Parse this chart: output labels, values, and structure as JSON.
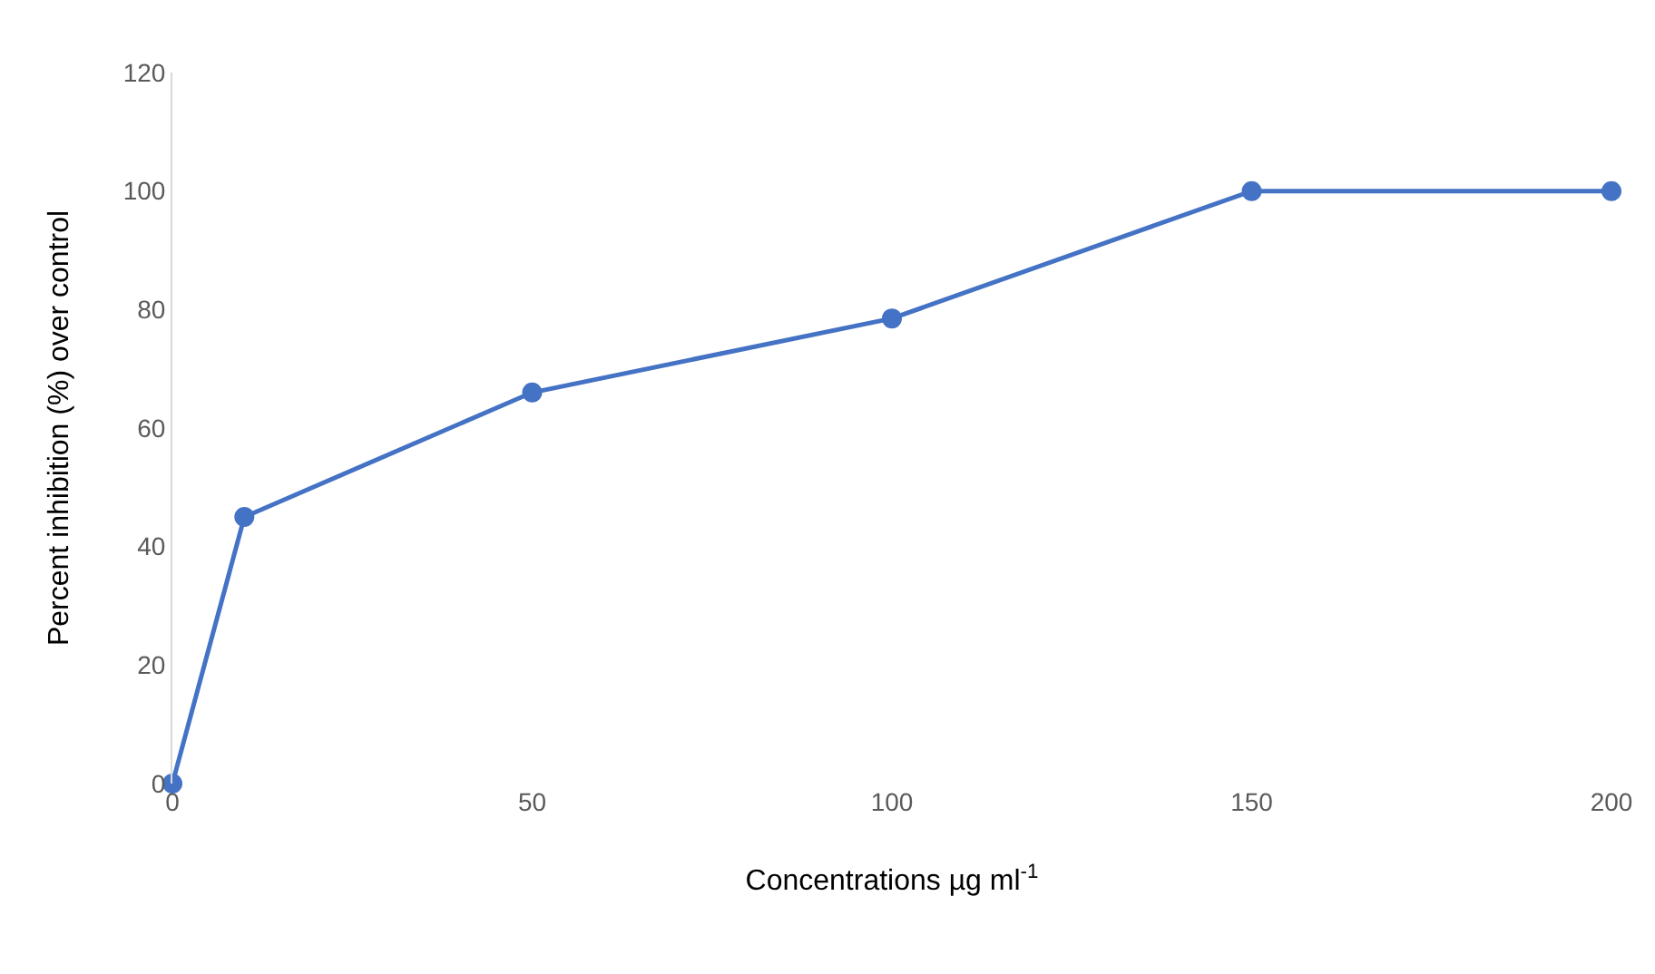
{
  "chart_data": {
    "type": "line",
    "xlabel": "Concentrations µg ml$^{-1}$",
    "ylabel": "Percent inhibition (%) over control",
    "x": [
      0,
      10,
      50,
      100,
      150,
      200
    ],
    "series": [
      {
        "color": "#4472c4",
        "values": [
          0,
          45,
          66,
          78.5,
          100,
          100
        ]
      }
    ],
    "xlim": [
      0,
      200
    ],
    "xticks": [
      0,
      50,
      100,
      150,
      200
    ],
    "ylim": [
      0,
      120
    ],
    "yticks": [
      0,
      20,
      40,
      60,
      80,
      100,
      120
    ],
    "marker": "circle",
    "line_style": "solid"
  }
}
